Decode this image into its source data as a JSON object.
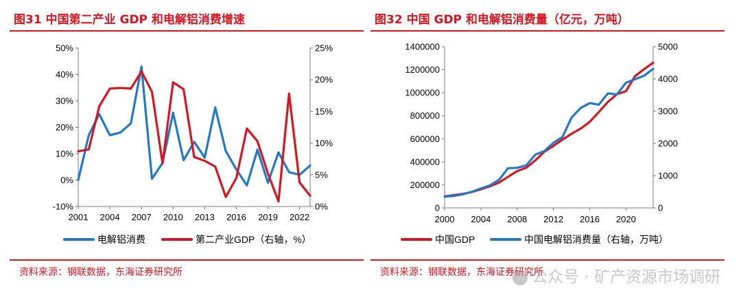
{
  "panels": [
    {
      "title": "图31  中国第二产业 GDP 和电解铝消费增速",
      "source": "资料来源：钢联数据，东海证券研究所"
    },
    {
      "title": "图32  中国 GDP 和电解铝消费量（亿元，万吨）",
      "source": "资料来源：钢联数据，东海证券研究所"
    }
  ],
  "watermark": "公众号 · 矿产资源市场调研",
  "colors": {
    "accent": "#d7141f",
    "series_blue": "#1f78c8",
    "series_red": "#d7141f",
    "axis": "#777777"
  },
  "chart_data": [
    {
      "type": "line",
      "x": [
        2001,
        2002,
        2003,
        2004,
        2005,
        2006,
        2007,
        2008,
        2009,
        2010,
        2011,
        2012,
        2013,
        2014,
        2015,
        2016,
        2017,
        2018,
        2019,
        2020,
        2021,
        2022,
        2023
      ],
      "x_ticks": [
        2001,
        2004,
        2007,
        2010,
        2013,
        2016,
        2019,
        2022
      ],
      "y_left": {
        "lim": [
          -10,
          50
        ],
        "ticks": [
          -10,
          0,
          10,
          20,
          30,
          40,
          50
        ],
        "tick_labels": [
          "-10%",
          "0%",
          "10%",
          "20%",
          "30%",
          "40%",
          "50%"
        ]
      },
      "y_right": {
        "lim": [
          0,
          25
        ],
        "ticks": [
          0,
          5,
          10,
          15,
          20,
          25
        ],
        "tick_labels": [
          "0%",
          "5%",
          "10%",
          "15%",
          "20%",
          "25%"
        ]
      },
      "series": [
        {
          "name": "电解铝消费",
          "axis": "left",
          "color": "#1f78c8",
          "values": [
            0,
            17,
            25,
            17,
            18,
            21.5,
            43,
            0.5,
            6.5,
            25.5,
            7.5,
            14.5,
            8.5,
            27.5,
            11,
            4,
            -2,
            11.5,
            -1,
            10.5,
            3,
            2,
            5.5
          ]
        },
        {
          "name": "第二产业GDP（右轴，%）",
          "axis": "right",
          "color": "#d7141f",
          "values": [
            8.7,
            9.0,
            15.8,
            18.6,
            18.7,
            18.6,
            21.3,
            18.1,
            6.8,
            19.6,
            18.5,
            7.8,
            7.2,
            6.3,
            1.5,
            4.5,
            12.3,
            10.3,
            5.2,
            0.8,
            17.8,
            3.8,
            1.7
          ]
        }
      ]
    },
    {
      "type": "line",
      "x": [
        2000,
        2001,
        2002,
        2003,
        2004,
        2005,
        2006,
        2007,
        2008,
        2009,
        2010,
        2011,
        2012,
        2013,
        2014,
        2015,
        2016,
        2017,
        2018,
        2019,
        2020,
        2021,
        2022,
        2023
      ],
      "x_ticks": [
        2000,
        2004,
        2008,
        2012,
        2016,
        2020
      ],
      "y_left": {
        "lim": [
          0,
          1400000
        ],
        "ticks": [
          0,
          200000,
          400000,
          600000,
          800000,
          1000000,
          1200000,
          1400000
        ],
        "tick_labels": [
          "0",
          "200000",
          "400000",
          "600000",
          "800000",
          "1000000",
          "1200000",
          "1400000"
        ]
      },
      "y_right": {
        "lim": [
          0,
          5000
        ],
        "ticks": [
          0,
          1000,
          2000,
          3000,
          4000,
          5000
        ],
        "tick_labels": [
          "0",
          "1000",
          "2000",
          "3000",
          "4000",
          "5000"
        ]
      },
      "series": [
        {
          "name": "中国GDP",
          "axis": "left",
          "color": "#d7141f",
          "values": [
            100280,
            110863,
            121717,
            137422,
            161840,
            187319,
            219439,
            270092,
            319245,
            348518,
            412119,
            487940,
            538580,
            592963,
            643563,
            688858,
            746395,
            832036,
            919281,
            986515,
            1013567,
            1143670,
            1204724,
            1260582
          ]
        },
        {
          "name": "中国电解铝消费量（右轴，万吨）",
          "axis": "right",
          "color": "#1f78c8",
          "values": [
            350,
            370,
            420,
            500,
            600,
            700,
            870,
            1230,
            1240,
            1320,
            1650,
            1760,
            2020,
            2200,
            2800,
            3100,
            3250,
            3200,
            3550,
            3520,
            3880,
            3990,
            4100,
            4310
          ]
        }
      ]
    }
  ]
}
